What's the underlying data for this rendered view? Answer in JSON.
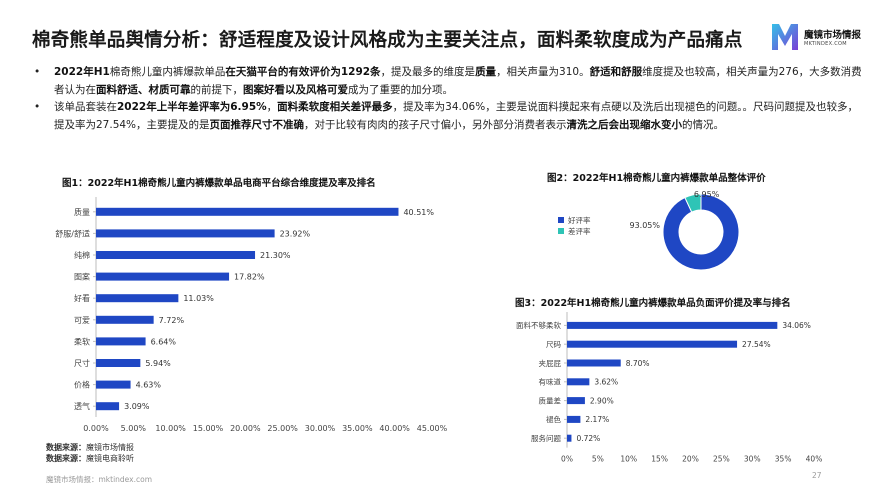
{
  "page": {
    "title": "棉奇熊单品舆情分析：舒适程度及设计风格成为主要关注点，面料柔软度成为产品痛点",
    "logo_text": "魔镜市场情报",
    "logo_sub": "MKTINDEX.COM",
    "bullet1": [
      {
        "t": "2022年H1",
        "b": true
      },
      {
        "t": "棉奇熊儿童内裤爆款单品",
        "b": false
      },
      {
        "t": "在天猫平台的有效评价为1292条",
        "b": true
      },
      {
        "t": "，提及最多的维度是",
        "b": false
      },
      {
        "t": "质量",
        "b": true
      },
      {
        "t": "，相关声量为310。",
        "b": false
      },
      {
        "t": "舒适和舒服",
        "b": true
      },
      {
        "t": "维度提及也较高，相关声量为276，大多数消费者认为在",
        "b": false
      },
      {
        "t": "面料舒适、材质可靠",
        "b": true
      },
      {
        "t": "的前提下，",
        "b": false
      },
      {
        "t": "图案好看以及风格可爱",
        "b": true
      },
      {
        "t": "成为了重要的加分项。",
        "b": false
      }
    ],
    "bullet2": [
      {
        "t": "该单品套装在",
        "b": false
      },
      {
        "t": "2022年上半年差评率为6.95%",
        "b": true
      },
      {
        "t": "，",
        "b": false
      },
      {
        "t": "面料柔软度相关差评最多",
        "b": true
      },
      {
        "t": "，提及率为34.06%，主要是说面料摸起来有点硬以及洗后出现褪色的问题。。尺码问题提及也较多，提及率为27.54%，主要提及的是",
        "b": false
      },
      {
        "t": "页面推荐尺寸不准确",
        "b": true
      },
      {
        "t": "，对于比较有肉肉的孩子尺寸偏小，另外部分消费者表示",
        "b": false
      },
      {
        "t": "清洗之后会出现缩水变小",
        "b": true
      },
      {
        "t": "的情况。",
        "b": false
      }
    ],
    "source_label": "数据来源：",
    "source1": "魔镜市场情报",
    "source2": "魔镜电商聆听",
    "footer": "魔镜市场情报：mktindex.com",
    "page_number": "27"
  },
  "chart_data": [
    {
      "type": "bar",
      "orientation": "horizontal",
      "title": "图1：2022年H1棉奇熊儿童内裤爆款单品电商平台综合维度提及率及排名",
      "categories": [
        "质量",
        "舒服/舒适",
        "纯棉",
        "图案",
        "好看",
        "可爱",
        "柔软",
        "尺寸",
        "价格",
        "透气"
      ],
      "values": [
        40.51,
        23.92,
        21.3,
        17.82,
        11.03,
        7.72,
        6.64,
        5.94,
        4.63,
        3.09
      ],
      "value_labels": [
        "40.51%",
        "23.92%",
        "21.30%",
        "17.82%",
        "11.03%",
        "7.72%",
        "6.64%",
        "5.94%",
        "4.63%",
        "3.09%"
      ],
      "xlim": [
        0,
        45
      ],
      "ticks": [
        "0.00%",
        "5.00%",
        "10.00%",
        "15.00%",
        "20.00%",
        "25.00%",
        "30.00%",
        "35.00%",
        "40.00%",
        "45.00%"
      ],
      "color": "#1f47c4"
    },
    {
      "type": "pie",
      "style": "donut",
      "title": "图2：2022年H1棉奇熊儿童内裤爆款单品整体评价",
      "slices": [
        {
          "name": "好评率",
          "value": 93.05,
          "label": "93.05%",
          "color": "#1f47c4"
        },
        {
          "name": "差评率",
          "value": 6.95,
          "label": "6.95%",
          "color": "#2ec4b6"
        }
      ],
      "legend": "left"
    },
    {
      "type": "bar",
      "orientation": "horizontal",
      "title": "图3：2022年H1棉奇熊儿童内裤爆款单品负面评价提及率与排名",
      "categories": [
        "面料不够柔软",
        "尺码",
        "夹屁屁",
        "有味道",
        "质量差",
        "褪色",
        "服务问题"
      ],
      "values": [
        34.06,
        27.54,
        8.7,
        3.62,
        2.9,
        2.17,
        0.72
      ],
      "value_labels": [
        "34.06%",
        "27.54%",
        "8.70%",
        "3.62%",
        "2.90%",
        "2.17%",
        "0.72%"
      ],
      "xlim": [
        0,
        40
      ],
      "ticks": [
        "0%",
        "5%",
        "10%",
        "15%",
        "20%",
        "25%",
        "30%",
        "35%",
        "40%"
      ],
      "color": "#1f47c4"
    }
  ]
}
